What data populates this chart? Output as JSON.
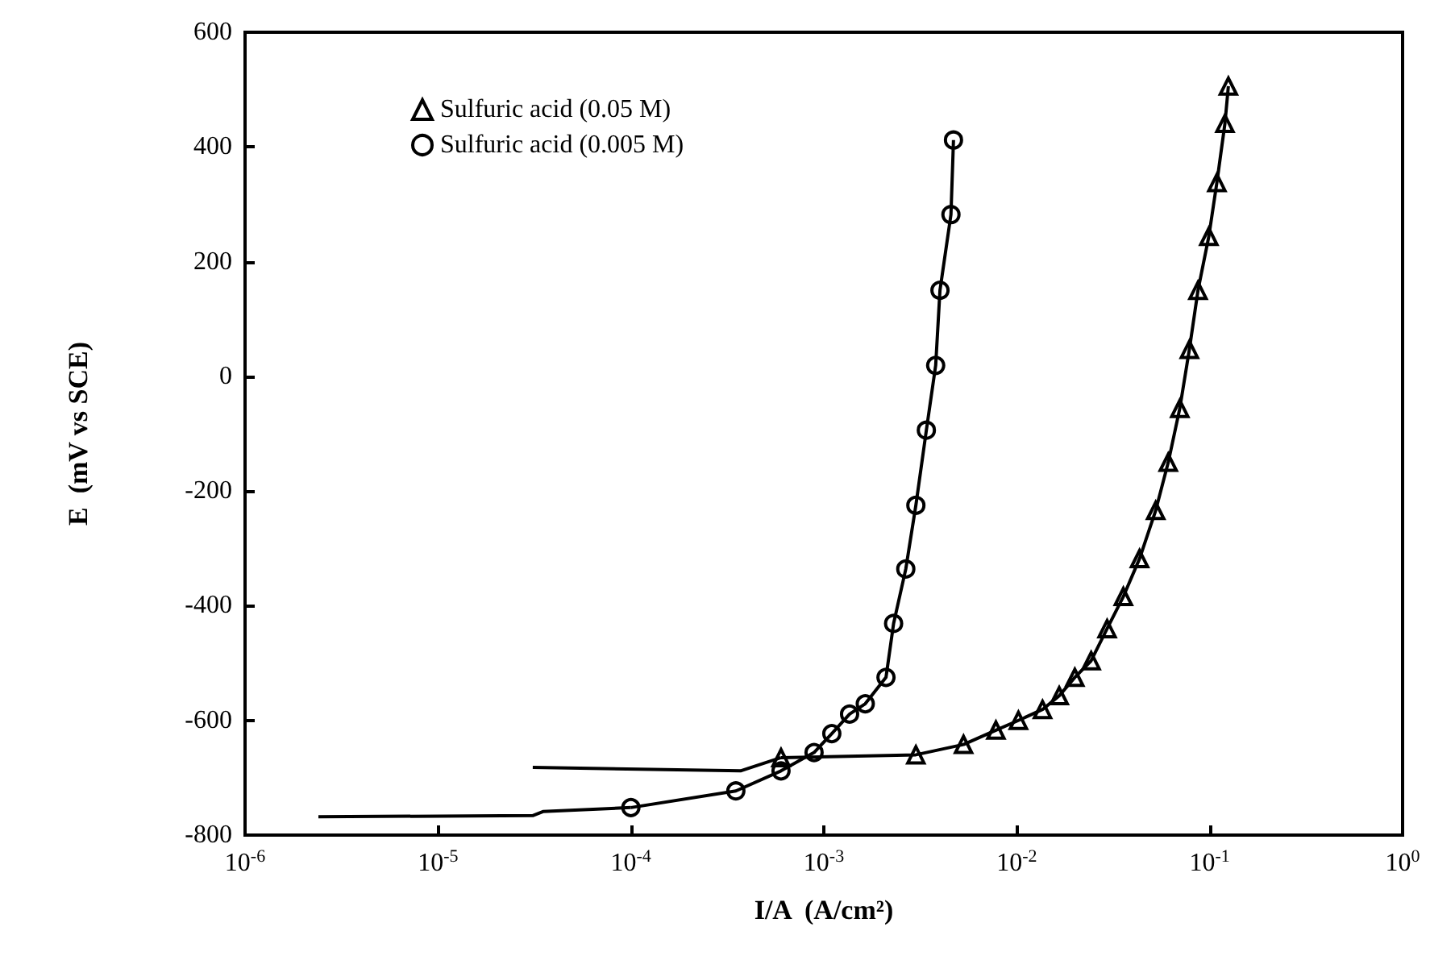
{
  "chart_data": {
    "type": "line",
    "xlabel": "I/A  (A/cm²)",
    "ylabel": "E  (mV vs SCE)",
    "log": "x",
    "grid": false,
    "legend": "top left",
    "xlim": [
      1e-06,
      1
    ],
    "xticks": [
      {
        "value": 1e-06,
        "label": "10$^{-6}$"
      },
      {
        "value": 1e-05,
        "label": "10$^{-5}$"
      },
      {
        "value": 0.0001,
        "label": "10$^{-4}$"
      },
      {
        "value": 0.001,
        "label": "10$^{-3}$"
      },
      {
        "value": 0.01,
        "label": "10$^{-2}$"
      },
      {
        "value": 0.1,
        "label": "10$^{-1}$"
      },
      {
        "value": 1,
        "label": "10$^{0}$"
      }
    ],
    "ylim": [
      -800,
      600
    ],
    "yticks": [
      -800,
      -600,
      -400,
      -200,
      0,
      200,
      400,
      600
    ],
    "series": [
      {
        "name": "Sulfuric acid (0.05 M)",
        "color": "#000000",
        "marker": "triangle",
        "x": [
          0.0006,
          0.003,
          0.0053,
          0.0078,
          0.0102,
          0.0136,
          0.0166,
          0.02,
          0.0243,
          0.0294,
          0.0357,
          0.0433,
          0.0525,
          0.061,
          0.07,
          0.0785,
          0.087,
          0.099,
          0.109,
          0.12,
          0.125
        ],
        "values": [
          -665,
          -660,
          -642,
          -617,
          -600,
          -581,
          -557,
          -525,
          -496,
          -440,
          -384,
          -318,
          -234,
          -150,
          -56,
          47,
          150,
          244,
          338,
          441,
          506
        ]
      },
      {
        "name": "Sulfuric acid (0.005 M)",
        "color": "#000000",
        "marker": "circle",
        "x": [
          0.0001,
          0.00035,
          0.0006,
          0.00089,
          0.0011,
          0.00136,
          0.00164,
          0.0021,
          0.0023,
          0.00266,
          0.003,
          0.0034,
          0.0038,
          0.004,
          0.00456,
          0.0047
        ],
        "values": [
          -752,
          -723,
          -688,
          -656,
          -623,
          -589,
          -571,
          -525,
          -431,
          -336,
          -225,
          -94,
          19,
          150,
          282,
          412
        ]
      },
      {
        "color": "#000000",
        "marker": "none",
        "x": [
          3.1e-05,
          0.00037,
          0.0006
        ],
        "values": [
          -682,
          -688,
          -665
        ]
      },
      {
        "color": "#000000",
        "marker": "none",
        "x": [
          2.4e-06,
          3.1e-05,
          3.5e-05,
          0.0001
        ],
        "values": [
          -768,
          -766,
          -759,
          -752
        ]
      }
    ]
  }
}
